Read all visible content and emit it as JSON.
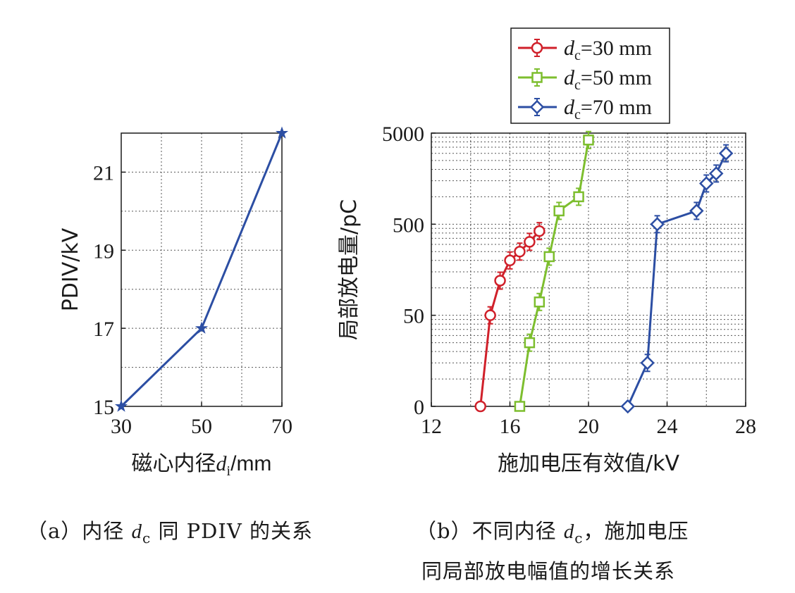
{
  "chart_data": [
    {
      "type": "line",
      "panel": "(a)",
      "xlabel": "磁心内径",
      "xlabel_var": "d",
      "xlabel_sub": "i",
      "xlabel_unit": "/mm",
      "ylabel": "PDIV/kV",
      "xlim": [
        30,
        70
      ],
      "ylim": [
        15,
        22
      ],
      "xticks": [
        "30",
        "50",
        "70"
      ],
      "yticks": [
        "15",
        "17",
        "19",
        "21"
      ],
      "x": [
        30,
        50,
        70
      ],
      "series": [
        {
          "values": [
            15,
            17,
            22
          ],
          "color": "#2c4ea3",
          "marker": "star"
        }
      ],
      "grid": true
    },
    {
      "type": "line",
      "panel": "(b)",
      "xlabel": "施加电压有效值/kV",
      "ylabel": "局部放电量/pC",
      "xlim": [
        12,
        28
      ],
      "xticks": [
        "12",
        "16",
        "20",
        "24",
        "28"
      ],
      "yticks": [
        "0",
        "50",
        "500",
        "5000"
      ],
      "y_scale": "log (0 mapped to axis floor)",
      "grid": true,
      "legend_position": "top",
      "series": [
        {
          "name_var": "d",
          "name_sub": "c",
          "name_rest": "=30 mm",
          "color": "#d0202a",
          "marker": "circle",
          "x": [
            14.5,
            15.0,
            15.5,
            16.0,
            16.5,
            17.0,
            17.5
          ],
          "y": [
            0,
            50,
            120,
            200,
            250,
            320,
            420
          ]
        },
        {
          "name_var": "d",
          "name_sub": "c",
          "name_rest": "=50 mm",
          "color": "#7dbe2e",
          "marker": "square",
          "x": [
            16.5,
            17.0,
            17.5,
            18.0,
            18.5,
            19.5,
            20.0
          ],
          "y": [
            0,
            25,
            70,
            220,
            700,
            1000,
            4200
          ]
        },
        {
          "name_var": "d",
          "name_sub": "c",
          "name_rest": "=70 mm",
          "color": "#2c4ea3",
          "marker": "diamond",
          "x": [
            22.0,
            23.0,
            23.5,
            25.5,
            26.0,
            26.5,
            27.0
          ],
          "y": [
            0,
            15,
            500,
            700,
            1400,
            1800,
            3000
          ]
        }
      ]
    }
  ],
  "captions": {
    "a_prefix": "（a）内径",
    "a_var": "d",
    "a_sub": "c",
    "a_rest": "同 PDIV 的关系",
    "b_line1_prefix": "（b）不同内径",
    "b_var": "d",
    "b_sub": "c",
    "b_line1_rest": "，施加电压",
    "b_line2": "同局部放电幅值的增长关系"
  }
}
